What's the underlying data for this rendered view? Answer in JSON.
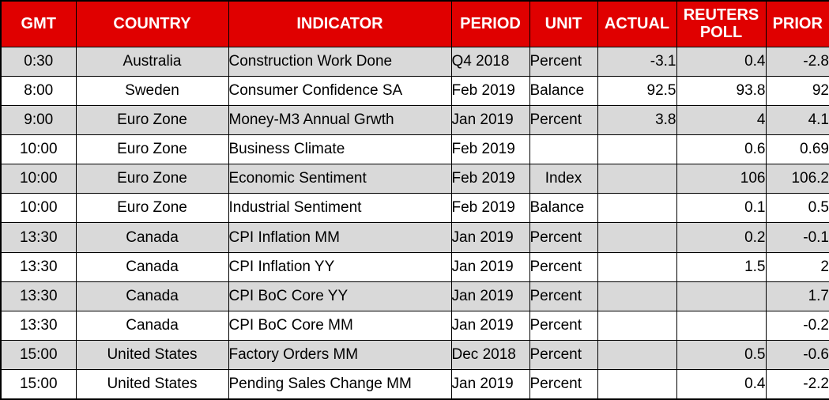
{
  "chart_data": {
    "type": "table",
    "columns": [
      "GMT",
      "COUNTRY",
      "INDICATOR",
      "PERIOD",
      "UNIT",
      "ACTUAL",
      "REUTERS POLL",
      "PRIOR"
    ],
    "rows": [
      [
        "0:30",
        "Australia",
        "Construction Work Done",
        "Q4 2018",
        "Percent",
        "-3.1",
        "0.4",
        "-2.8"
      ],
      [
        "8:00",
        "Sweden",
        "Consumer Confidence SA",
        "Feb 2019",
        "Balance",
        "92.5",
        "93.8",
        "92"
      ],
      [
        "9:00",
        "Euro Zone",
        "Money-M3 Annual Grwth",
        "Jan 2019",
        "Percent",
        "3.8",
        "4",
        "4.1"
      ],
      [
        "10:00",
        "Euro Zone",
        "Business Climate",
        "Feb 2019",
        "",
        "",
        "0.6",
        "0.69"
      ],
      [
        "10:00",
        "Euro Zone",
        "Economic Sentiment",
        "Feb 2019",
        "Index",
        "",
        "106",
        "106.2"
      ],
      [
        "10:00",
        "Euro Zone",
        "Industrial Sentiment",
        "Feb 2019",
        "Balance",
        "",
        "0.1",
        "0.5"
      ],
      [
        "13:30",
        "Canada",
        "CPI Inflation MM",
        "Jan 2019",
        "Percent",
        "",
        "0.2",
        "-0.1"
      ],
      [
        "13:30",
        "Canada",
        "CPI Inflation YY",
        "Jan 2019",
        "Percent",
        "",
        "1.5",
        "2"
      ],
      [
        "13:30",
        "Canada",
        "CPI BoC Core YY",
        "Jan 2019",
        "Percent",
        "",
        "",
        "1.7"
      ],
      [
        "13:30",
        "Canada",
        "CPI BoC Core MM",
        "Jan 2019",
        "Percent",
        "",
        "",
        "-0.2"
      ],
      [
        "15:00",
        "United States",
        "Factory Orders MM",
        "Dec 2018",
        "Percent",
        "",
        "0.5",
        "-0.6"
      ],
      [
        "15:00",
        "United States",
        "Pending Sales Change MM",
        "Jan 2019",
        "Percent",
        "",
        "0.4",
        "-2.2"
      ]
    ],
    "layout": {
      "legend": "none",
      "grid": "all-cell-borders",
      "header_position": "top",
      "zebra_striping": "first-row-gray-alternating"
    }
  },
  "colors": {
    "header_bg": "#e00000",
    "header_text": "#ffffff",
    "row_alt_bg": "#d9d9d9",
    "row_bg": "#ffffff",
    "border": "#000000",
    "body_text": "#000000"
  }
}
